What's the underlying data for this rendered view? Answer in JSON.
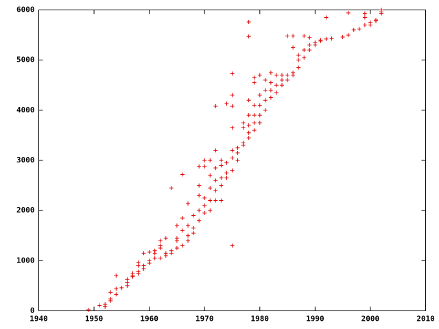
{
  "chart_data": {
    "type": "scatter",
    "x": [
      1949,
      1951,
      1952,
      1952,
      1953,
      1953,
      1953,
      1954,
      1954,
      1954,
      1955,
      1956,
      1956,
      1956,
      1957,
      1957,
      1957,
      1958,
      1958,
      1958,
      1958,
      1959,
      1959,
      1959,
      1960,
      1960,
      1960,
      1961,
      1961,
      1961,
      1962,
      1962,
      1962,
      1962,
      1963,
      1963,
      1963,
      1964,
      1964,
      1964,
      1965,
      1965,
      1965,
      1965,
      1966,
      1966,
      1966,
      1966,
      1967,
      1967,
      1967,
      1967,
      1968,
      1968,
      1968,
      1969,
      1969,
      1969,
      1969,
      1969,
      1970,
      1970,
      1970,
      1970,
      1970,
      1971,
      1971,
      1971,
      1971,
      1971,
      1972,
      1972,
      1972,
      1972,
      1972,
      1972,
      1973,
      1973,
      1973,
      1973,
      1973,
      1974,
      1974,
      1974,
      1974,
      1975,
      1975,
      1975,
      1975,
      1975,
      1975,
      1975,
      1975,
      1976,
      1976,
      1976,
      1977,
      1977,
      1977,
      1977,
      1978,
      1978,
      1978,
      1978,
      1978,
      1978,
      1978,
      1979,
      1979,
      1979,
      1979,
      1979,
      1979,
      1980,
      1980,
      1980,
      1980,
      1980,
      1981,
      1981,
      1981,
      1981,
      1982,
      1982,
      1982,
      1982,
      1983,
      1983,
      1983,
      1984,
      1984,
      1984,
      1985,
      1985,
      1985,
      1986,
      1986,
      1986,
      1986,
      1987,
      1987,
      1987,
      1988,
      1988,
      1988,
      1989,
      1989,
      1989,
      1990,
      1990,
      1991,
      1991,
      1992,
      1992,
      1993,
      1995,
      1996,
      1996,
      1997,
      1998,
      1999,
      1999,
      1999,
      2000,
      2000,
      2001,
      2001,
      2002,
      2002,
      2002
    ],
    "y": [
      20,
      110,
      130,
      80,
      200,
      240,
      370,
      330,
      440,
      700,
      460,
      500,
      560,
      630,
      680,
      750,
      700,
      780,
      900,
      960,
      740,
      840,
      900,
      1150,
      950,
      1000,
      1170,
      1050,
      1200,
      1150,
      1050,
      1300,
      1400,
      1250,
      1100,
      1150,
      1450,
      1150,
      1200,
      2450,
      1250,
      1400,
      1450,
      1700,
      1300,
      1600,
      1850,
      2720,
      1400,
      1500,
      1700,
      2140,
      1550,
      1650,
      1900,
      1800,
      2000,
      2300,
      2500,
      2880,
      1950,
      2100,
      2250,
      2880,
      3000,
      2000,
      2200,
      2450,
      2700,
      3000,
      2200,
      2400,
      2600,
      2850,
      3200,
      4080,
      2200,
      2500,
      2650,
      2900,
      3000,
      2650,
      2750,
      2950,
      4130,
      1300,
      2800,
      3050,
      3200,
      3650,
      4300,
      4730,
      4080,
      3000,
      3150,
      3250,
      3300,
      3350,
      3650,
      3750,
      3450,
      3550,
      3700,
      3900,
      4200,
      5470,
      5760,
      3600,
      3750,
      3900,
      4100,
      4550,
      4650,
      3750,
      3900,
      4100,
      4300,
      4700,
      4000,
      4200,
      4400,
      4600,
      4250,
      4400,
      4550,
      4750,
      4350,
      4500,
      4700,
      4500,
      4600,
      4700,
      4600,
      4700,
      5480,
      4700,
      4750,
      5250,
      5480,
      4850,
      5000,
      5100,
      5050,
      5200,
      5480,
      5200,
      5300,
      5450,
      5300,
      5350,
      5380,
      5400,
      5420,
      5850,
      5430,
      5460,
      5500,
      5940,
      5600,
      5620,
      5700,
      5850,
      5930,
      5700,
      5750,
      5780,
      5800,
      5930,
      5960,
      6000
    ],
    "color": "#e00000",
    "xlim": [
      1940,
      2010
    ],
    "xticks": [
      1940,
      1950,
      1960,
      1970,
      1980,
      1990,
      2000,
      2010
    ],
    "ylim": [
      0,
      6000
    ],
    "yticks": [
      0,
      1000,
      2000,
      3000,
      4000,
      5000,
      6000
    ]
  }
}
